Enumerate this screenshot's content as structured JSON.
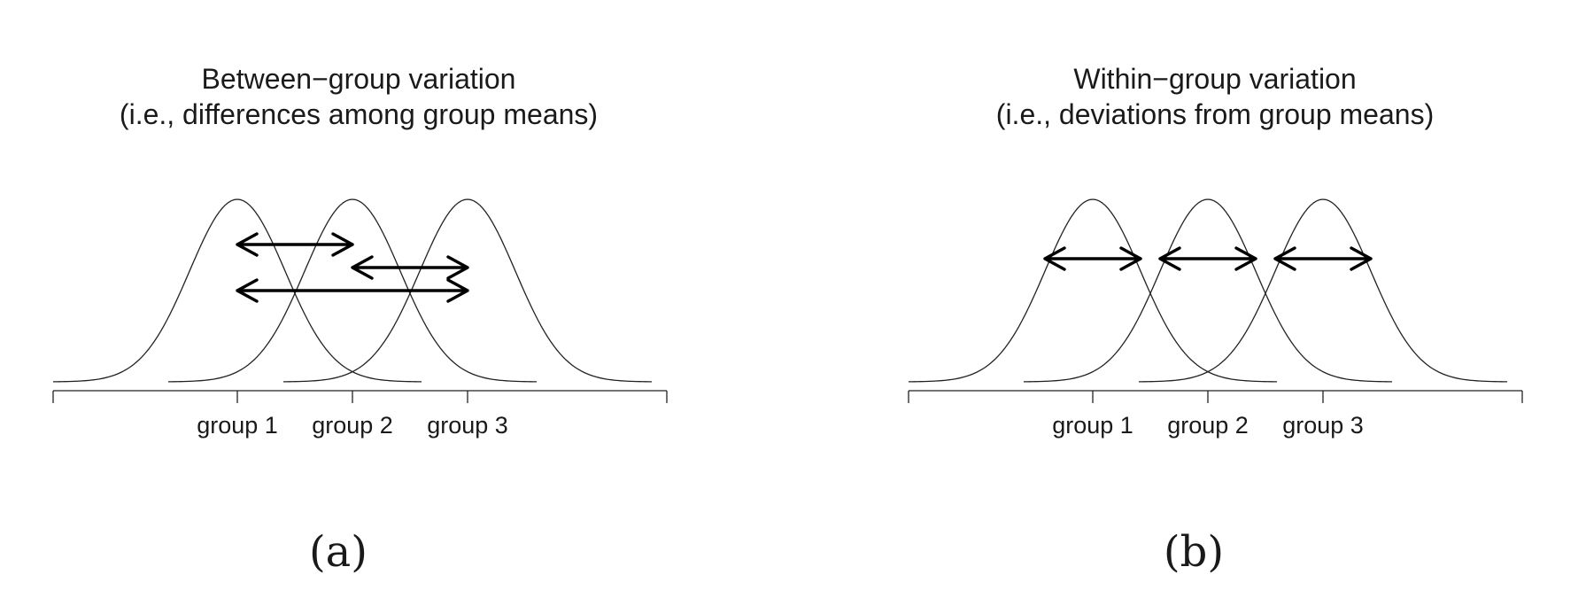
{
  "panels": [
    {
      "id": "a",
      "title_line1": "Between−group variation",
      "title_line2": "(i.e., differences among group means)",
      "caption": "(a)",
      "groups": [
        "group 1",
        "group 2",
        "group 3"
      ]
    },
    {
      "id": "b",
      "title_line1": "Within−group variation",
      "title_line2": "(i.e., deviations from group means)",
      "caption": "(b)",
      "groups": [
        "group 1",
        "group 2",
        "group 3"
      ]
    }
  ]
}
